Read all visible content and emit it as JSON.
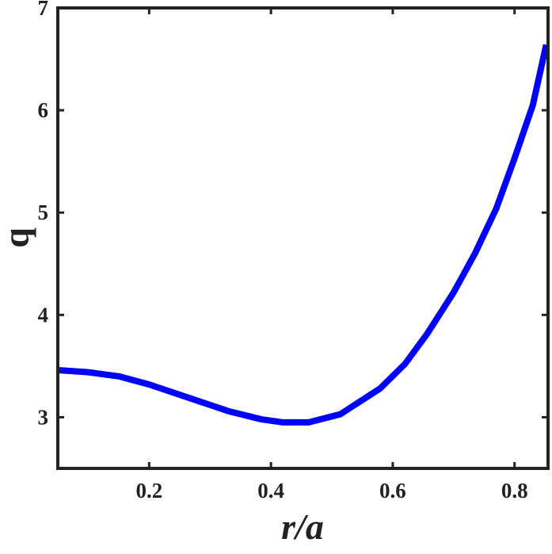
{
  "chart_data": {
    "type": "line",
    "x_label": "r/a",
    "y_label": "q",
    "x": [
      0.05,
      0.1,
      0.15,
      0.2,
      0.28,
      0.33,
      0.384,
      0.42,
      0.462,
      0.514,
      0.579,
      0.62,
      0.657,
      0.7,
      0.735,
      0.77,
      0.8,
      0.83,
      0.852
    ],
    "series": [
      {
        "name": "q",
        "color": "#0000ff",
        "values": [
          3.46,
          3.44,
          3.4,
          3.32,
          3.16,
          3.06,
          2.98,
          2.95,
          2.95,
          3.03,
          3.28,
          3.52,
          3.82,
          4.22,
          4.6,
          5.04,
          5.53,
          6.05,
          6.64
        ]
      }
    ],
    "xlim": [
      0.05,
      0.855
    ],
    "ylim": [
      2.5,
      7
    ],
    "xticks": [
      0.2,
      0.4,
      0.6,
      0.8
    ],
    "yticks": [
      3,
      4,
      5,
      6,
      7
    ]
  }
}
